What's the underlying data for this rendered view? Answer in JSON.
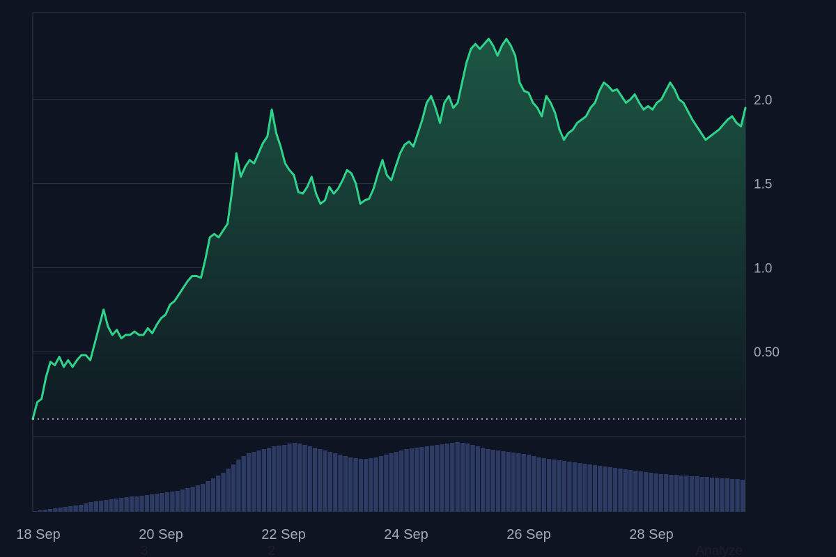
{
  "chart_data": {
    "type": "area",
    "title": "",
    "xlabel": "",
    "ylabel": "",
    "x_range": [
      "2023-09-18T00:00",
      "2023-09-29T18:00"
    ],
    "ylim": [
      0,
      2.6
    ],
    "grid": "horizontal",
    "colors": {
      "background": "#0e1422",
      "line": "#2fd48c",
      "fill_top": "#1d5a45",
      "fill_bottom": "#0f1a22",
      "grid": "#2e3747",
      "baseline": "#cfd6e0",
      "volume": "#2d3a63"
    },
    "y_ticks": [
      "0.50",
      "1.0",
      "1.5",
      "2.0"
    ],
    "x_ticks": [
      "18 Sep",
      "20 Sep",
      "22 Sep",
      "24 Sep",
      "26 Sep",
      "28 Sep"
    ],
    "baseline_value": 0.1,
    "sub_labels": [
      "3",
      "2"
    ],
    "corner_label": "Analyze",
    "series": [
      {
        "type": "line",
        "values": [
          0.1,
          0.2,
          0.22,
          0.35,
          0.44,
          0.42,
          0.47,
          0.41,
          0.45,
          0.41,
          0.45,
          0.48,
          0.48,
          0.45,
          0.55,
          0.65,
          0.75,
          0.65,
          0.6,
          0.63,
          0.58,
          0.6,
          0.6,
          0.62,
          0.6,
          0.6,
          0.64,
          0.61,
          0.66,
          0.7,
          0.72,
          0.78,
          0.8,
          0.84,
          0.88,
          0.92,
          0.95,
          0.95,
          0.94,
          1.05,
          1.18,
          1.2,
          1.18,
          1.22,
          1.26,
          1.45,
          1.68,
          1.54,
          1.6,
          1.64,
          1.62,
          1.68,
          1.74,
          1.78,
          1.94,
          1.8,
          1.72,
          1.62,
          1.58,
          1.55,
          1.45,
          1.44,
          1.48,
          1.54,
          1.44,
          1.38,
          1.4,
          1.48,
          1.44,
          1.47,
          1.52,
          1.58,
          1.56,
          1.5,
          1.38,
          1.4,
          1.41,
          1.47,
          1.56,
          1.64,
          1.55,
          1.52,
          1.6,
          1.68,
          1.73,
          1.75,
          1.72,
          1.8,
          1.88,
          1.98,
          2.02,
          1.95,
          1.86,
          1.98,
          2.02,
          1.95,
          1.98,
          2.1,
          2.22,
          2.3,
          2.33,
          2.3,
          2.33,
          2.36,
          2.32,
          2.26,
          2.32,
          2.36,
          2.32,
          2.26,
          2.1,
          2.05,
          2.04,
          1.98,
          1.95,
          1.9,
          2.02,
          1.98,
          1.92,
          1.82,
          1.76,
          1.8,
          1.82,
          1.86,
          1.88,
          1.9,
          1.95,
          1.98,
          2.05,
          2.1,
          2.08,
          2.05,
          2.06,
          2.02,
          1.98,
          2.0,
          2.03,
          1.98,
          1.94,
          1.96,
          1.94,
          1.98,
          2.0,
          2.05,
          2.1,
          2.06,
          2.0,
          1.98,
          1.93,
          1.88,
          1.84,
          1.8,
          1.76,
          1.78,
          1.8,
          1.82,
          1.85,
          1.88,
          1.9,
          1.86,
          1.84,
          1.95
        ]
      },
      {
        "type": "volume",
        "values": [
          1,
          2,
          3,
          4,
          5,
          6,
          7,
          8,
          9,
          10,
          12,
          14,
          15,
          16,
          17,
          18,
          19,
          20,
          21,
          22,
          22,
          23,
          24,
          25,
          26,
          27,
          28,
          29,
          30,
          32,
          34,
          36,
          38,
          40,
          44,
          48,
          52,
          56,
          62,
          68,
          75,
          80,
          84,
          86,
          88,
          90,
          92,
          94,
          95,
          96,
          98,
          99,
          98,
          96,
          94,
          92,
          90,
          88,
          86,
          84,
          82,
          80,
          78,
          77,
          76,
          76,
          77,
          78,
          80,
          82,
          84,
          86,
          88,
          90,
          91,
          92,
          93,
          94,
          95,
          96,
          97,
          98,
          99,
          100,
          99,
          98,
          96,
          94,
          92,
          90,
          89,
          88,
          87,
          86,
          85,
          84,
          83,
          82,
          80,
          78,
          77,
          76,
          75,
          74,
          73,
          72,
          71,
          70,
          69,
          68,
          67,
          66,
          65,
          64,
          63,
          62,
          61,
          60,
          59,
          58,
          57,
          56,
          55,
          54,
          54,
          53,
          53,
          52,
          52,
          51,
          51,
          50,
          50,
          49,
          49,
          48,
          48,
          47,
          47,
          46
        ]
      }
    ]
  }
}
